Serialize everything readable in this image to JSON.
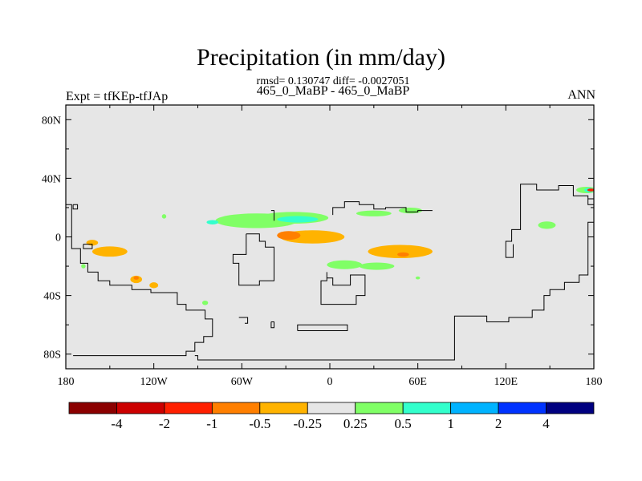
{
  "chart_data": {
    "type": "heatmap",
    "title": "Precipitation (in mm/day)",
    "stats_text": "rmsd= 0.130747 diff= -0.0027051",
    "subtitle": "465_0_MaBP - 465_0_MaBP",
    "left_label": "Expt = tfKEp-tfJAp",
    "right_label": "ANN",
    "xlim": [
      -180,
      180
    ],
    "ylim": [
      -90,
      90
    ],
    "x_ticks": [
      {
        "value": -180,
        "label": "180"
      },
      {
        "value": -120,
        "label": "120W"
      },
      {
        "value": -60,
        "label": "60W"
      },
      {
        "value": 0,
        "label": "0"
      },
      {
        "value": 60,
        "label": "60E"
      },
      {
        "value": 120,
        "label": "120E"
      },
      {
        "value": 180,
        "label": "180"
      }
    ],
    "y_ticks": [
      {
        "value": 80,
        "label": "80N"
      },
      {
        "value": 40,
        "label": "40N"
      },
      {
        "value": 0,
        "label": "0"
      },
      {
        "value": -40,
        "label": "40S"
      },
      {
        "value": -80,
        "label": "80S"
      }
    ],
    "background_color": "#e6e6e6",
    "colorbar": {
      "colors": [
        "#8b0000",
        "#cc0000",
        "#ff2000",
        "#ff7f00",
        "#ffb300",
        "#e6e6e6",
        "#80ff66",
        "#33ffcc",
        "#00b3ff",
        "#0033ff",
        "#000080"
      ],
      "labels": [
        "-4",
        "-2",
        "-1",
        "-0.5",
        "-0.25",
        "0.25",
        "0.5",
        "1",
        "2",
        "4"
      ]
    },
    "anomalies": [
      {
        "lon": -50,
        "lat": 11,
        "rx": 28,
        "ry": 5,
        "color": "#80ff66"
      },
      {
        "lon": -25,
        "lat": 13,
        "rx": 24,
        "ry": 4,
        "color": "#80ff66"
      },
      {
        "lon": 30,
        "lat": 16,
        "rx": 12,
        "ry": 2,
        "color": "#80ff66"
      },
      {
        "lon": -22,
        "lat": 12,
        "rx": 14,
        "ry": 2.2,
        "color": "#33ffcc"
      },
      {
        "lon": -80,
        "lat": 10,
        "rx": 4,
        "ry": 1.5,
        "color": "#33ffcc"
      },
      {
        "lon": -12,
        "lat": 0,
        "rx": 22,
        "ry": 4.5,
        "color": "#ffb300"
      },
      {
        "lon": -28,
        "lat": 1,
        "rx": 8,
        "ry": 3,
        "color": "#ff7f00"
      },
      {
        "lon": 48,
        "lat": -10,
        "rx": 22,
        "ry": 4.5,
        "color": "#ffb300"
      },
      {
        "lon": 50,
        "lat": -12,
        "rx": 4,
        "ry": 1.5,
        "color": "#ff7f00"
      },
      {
        "lon": 10,
        "lat": -19,
        "rx": 12,
        "ry": 3,
        "color": "#80ff66"
      },
      {
        "lon": 32,
        "lat": -20,
        "rx": 12,
        "ry": 2.5,
        "color": "#80ff66"
      },
      {
        "lon": -150,
        "lat": -10,
        "rx": 12,
        "ry": 3.5,
        "color": "#ffb300"
      },
      {
        "lon": -162,
        "lat": -4,
        "rx": 4,
        "ry": 2,
        "color": "#ffb300"
      },
      {
        "lon": -132,
        "lat": -29,
        "rx": 4,
        "ry": 2.5,
        "color": "#ffb300"
      },
      {
        "lon": -120,
        "lat": -33,
        "rx": 3,
        "ry": 2,
        "color": "#ffb300"
      },
      {
        "lon": -132,
        "lat": -28,
        "rx": 1.8,
        "ry": 1.2,
        "color": "#ff7f00"
      },
      {
        "lon": 175,
        "lat": 32,
        "rx": 7,
        "ry": 2.2,
        "color": "#80ff66"
      },
      {
        "lon": 177,
        "lat": 32,
        "rx": 3.5,
        "ry": 1.6,
        "color": "#33ffcc"
      },
      {
        "lon": 178,
        "lat": 32,
        "rx": 2.5,
        "ry": 1,
        "color": "#ff2000"
      },
      {
        "lon": 148,
        "lat": 8,
        "rx": 6,
        "ry": 2.5,
        "color": "#80ff66"
      },
      {
        "lon": 55,
        "lat": 18,
        "rx": 8,
        "ry": 2,
        "color": "#80ff66"
      },
      {
        "lon": -113,
        "lat": 14,
        "rx": 1.5,
        "ry": 1.5,
        "color": "#80ff66"
      },
      {
        "lon": -168,
        "lat": -20,
        "rx": 1.5,
        "ry": 1.5,
        "color": "#80ff66"
      },
      {
        "lon": -85,
        "lat": -45,
        "rx": 2,
        "ry": 1.5,
        "color": "#80ff66"
      },
      {
        "lon": 60,
        "lat": -28,
        "rx": 1.5,
        "ry": 1,
        "color": "#80ff66"
      }
    ],
    "coastlines": [
      [
        [
          -180,
          22
        ],
        [
          -176,
          22
        ],
        [
          -176,
          -8
        ],
        [
          -170,
          -8
        ],
        [
          -170,
          -18
        ],
        [
          -165,
          -18
        ],
        [
          -165,
          -24
        ],
        [
          -158,
          -24
        ],
        [
          -158,
          -30
        ],
        [
          -150,
          -30
        ],
        [
          -150,
          -33
        ],
        [
          -135,
          -33
        ],
        [
          -135,
          -36
        ],
        [
          -122,
          -36
        ],
        [
          -122,
          -38
        ],
        [
          -104,
          -38
        ],
        [
          -104,
          -46
        ],
        [
          -98,
          -46
        ],
        [
          -98,
          -50
        ],
        [
          -85,
          -50
        ],
        [
          -85,
          -56
        ],
        [
          -80,
          -56
        ],
        [
          -80,
          -68
        ],
        [
          -86,
          -68
        ],
        [
          -86,
          -72
        ],
        [
          -92,
          -72
        ],
        [
          -92,
          -78
        ],
        [
          -98,
          -78
        ],
        [
          -98,
          -81
        ],
        [
          -175,
          -81
        ]
      ],
      [
        [
          -175,
          22
        ],
        [
          -172,
          22
        ],
        [
          -172,
          19
        ],
        [
          -175,
          19
        ],
        [
          -175,
          22
        ]
      ],
      [
        [
          -168,
          -5
        ],
        [
          -162,
          -5
        ],
        [
          -162,
          -8
        ],
        [
          -168,
          -8
        ],
        [
          -168,
          -5
        ]
      ],
      [
        [
          -92,
          -81
        ],
        [
          -90,
          -81
        ],
        [
          -90,
          -84
        ],
        [
          85,
          -84
        ],
        [
          85,
          -54
        ],
        [
          107,
          -54
        ],
        [
          107,
          -58
        ],
        [
          122,
          -58
        ],
        [
          122,
          -55
        ],
        [
          138,
          -55
        ],
        [
          138,
          -50
        ],
        [
          146,
          -50
        ],
        [
          146,
          -40
        ],
        [
          150,
          -40
        ],
        [
          150,
          -36
        ],
        [
          160,
          -36
        ],
        [
          160,
          -31
        ],
        [
          170,
          -31
        ],
        [
          170,
          -26
        ],
        [
          176,
          -26
        ],
        [
          176,
          10
        ],
        [
          180,
          10
        ]
      ],
      [
        [
          180,
          22
        ],
        [
          176,
          22
        ],
        [
          176,
          28
        ],
        [
          166,
          28
        ],
        [
          166,
          35
        ],
        [
          156,
          35
        ],
        [
          156,
          32
        ],
        [
          141,
          32
        ],
        [
          141,
          36
        ],
        [
          130,
          36
        ],
        [
          130,
          5
        ],
        [
          124,
          5
        ],
        [
          124,
          -3
        ],
        [
          120,
          -3
        ],
        [
          120,
          -14
        ],
        [
          125,
          -14
        ],
        [
          125,
          -5
        ]
      ],
      [
        [
          180,
          26
        ],
        [
          176,
          26
        ]
      ],
      [
        [
          -57,
          2
        ],
        [
          -57,
          -12
        ],
        [
          -66,
          -12
        ],
        [
          -66,
          -18
        ],
        [
          -62,
          -18
        ],
        [
          -62,
          -33
        ],
        [
          -48,
          -33
        ],
        [
          -48,
          -30
        ],
        [
          -38,
          -30
        ],
        [
          -38,
          -7
        ],
        [
          -44,
          -7
        ],
        [
          -44,
          -3
        ],
        [
          -48,
          -3
        ],
        [
          -48,
          2
        ],
        [
          -57,
          2
        ]
      ],
      [
        [
          -40,
          18
        ],
        [
          -38,
          18
        ],
        [
          -38,
          11
        ]
      ],
      [
        [
          2,
          15
        ],
        [
          2,
          20
        ],
        [
          10,
          20
        ],
        [
          10,
          24
        ],
        [
          20,
          24
        ],
        [
          20,
          22
        ],
        [
          30,
          22
        ],
        [
          30,
          19
        ],
        [
          38,
          19
        ],
        [
          38,
          20
        ],
        [
          52,
          20
        ],
        [
          52,
          17
        ],
        [
          60,
          17
        ],
        [
          60,
          18
        ],
        [
          70,
          18
        ]
      ],
      [
        [
          -2,
          -24
        ],
        [
          -2,
          -28
        ],
        [
          2,
          -28
        ],
        [
          2,
          -33
        ],
        [
          14,
          -33
        ],
        [
          14,
          -26
        ],
        [
          24,
          -26
        ],
        [
          24,
          -40
        ],
        [
          18,
          -40
        ],
        [
          18,
          -46
        ],
        [
          -6,
          -46
        ],
        [
          -6,
          -30
        ],
        [
          -2,
          -30
        ],
        [
          -2,
          -24
        ]
      ],
      [
        [
          -62,
          -55
        ],
        [
          -56,
          -55
        ],
        [
          -56,
          -59
        ],
        [
          -58,
          -59
        ]
      ],
      [
        [
          -40,
          -58
        ],
        [
          -38,
          -58
        ],
        [
          -38,
          -62
        ],
        [
          -40,
          -62
        ],
        [
          -40,
          -58
        ]
      ],
      [
        [
          -22,
          -64
        ],
        [
          12,
          -64
        ],
        [
          12,
          -60
        ],
        [
          -22,
          -60
        ],
        [
          -22,
          -64
        ]
      ]
    ]
  }
}
